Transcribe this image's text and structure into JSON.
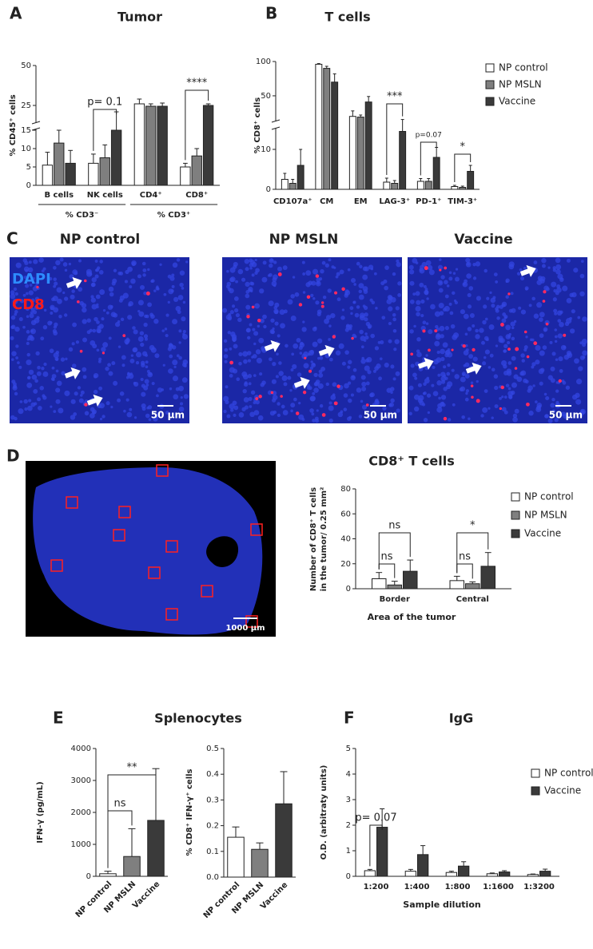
{
  "panel_labels": [
    "A",
    "B",
    "C",
    "D",
    "E",
    "F"
  ],
  "images": {
    "titles": [
      "NP control",
      "NP MSLN",
      "Vaccine"
    ],
    "channels": [
      "DAPI",
      "CD8"
    ],
    "scale_bars": [
      "50 µm",
      "50 µm",
      "50 µm"
    ],
    "overview_scale_bar": "1000 µm"
  },
  "chart_data": [
    {
      "type": "bar",
      "title": "Tumor",
      "y_label": "% CD45⁺ cells",
      "categories": [
        "B cells",
        "NK cells",
        "CD4⁺",
        "CD8⁺"
      ],
      "x_group_labels": [
        "% CD3⁻",
        "% CD3⁺"
      ],
      "series": [
        {
          "color": "#ffffff",
          "values": [
            5.5,
            6,
            26,
            5
          ],
          "errors": [
            3.5,
            2.5,
            3,
            1
          ]
        },
        {
          "color": "#7f7f7f",
          "values": [
            11.5,
            7.5,
            24.5,
            8
          ],
          "errors": [
            3.5,
            3.5,
            1.5,
            2
          ]
        },
        {
          "color": "#3a3a3a",
          "values": [
            6,
            15,
            24.5,
            25
          ],
          "errors": [
            3.5,
            6,
            2,
            1
          ]
        }
      ],
      "ylim": [
        0,
        50
      ],
      "yticks": [
        0,
        5,
        10,
        15,
        25,
        50
      ],
      "y_break": 15,
      "annotations": [
        "p= 0.1",
        "****"
      ]
    },
    {
      "type": "bar",
      "title": "T cells",
      "y_label": "% CD8⁺ cells",
      "categories": [
        "CD107a⁺",
        "CM",
        "EM",
        "LAG-3⁺",
        "PD-1⁺",
        "TIM-3⁺"
      ],
      "series": [
        {
          "name": "NP control",
          "color": "#ffffff",
          "values": [
            2.5,
            96,
            20,
            1.8,
            2,
            0.7
          ],
          "errors": [
            1.5,
            1,
            8,
            1,
            0.7,
            0.3
          ]
        },
        {
          "name": "NP MSLN",
          "color": "#7f7f7f",
          "values": [
            1.5,
            90,
            19,
            1.5,
            2,
            0.5
          ],
          "errors": [
            1,
            3,
            3,
            0.7,
            0.7,
            0.3
          ]
        },
        {
          "name": "Vaccine",
          "color": "#3a3a3a",
          "values": [
            6,
            70,
            41,
            14.5,
            8,
            4.5
          ],
          "errors": [
            4,
            12,
            8,
            1,
            2.5,
            1.5
          ]
        }
      ],
      "ylim": [
        0,
        100
      ],
      "yticks": [
        0,
        10,
        50,
        100
      ],
      "y_break": 15,
      "annotations": [
        "***",
        "p=0.07",
        "*"
      ]
    },
    {
      "type": "bar",
      "title": "CD8⁺ T cells",
      "y_label": [
        "Number of CD8⁺ T cells",
        "in the tumor/ 0.25 mm²"
      ],
      "x_label": "Area of the tumor",
      "categories": [
        "Border",
        "Central"
      ],
      "series": [
        {
          "name": "NP control",
          "color": "#ffffff",
          "values": [
            8,
            6.5
          ],
          "errors": [
            5,
            3.5
          ]
        },
        {
          "name": "NP MSLN",
          "color": "#7f7f7f",
          "values": [
            3,
            4
          ],
          "errors": [
            3,
            1.5
          ]
        },
        {
          "name": "Vaccine",
          "color": "#3a3a3a",
          "values": [
            14,
            18
          ],
          "errors": [
            9,
            11
          ]
        }
      ],
      "ylim": [
        0,
        80
      ],
      "yticks": [
        0,
        20,
        40,
        60,
        80
      ],
      "annotations": [
        "ns",
        "ns",
        "ns",
        "*"
      ]
    },
    {
      "type": "bar",
      "title": "Splenocytes",
      "y_label": "IFN-γ (pg/mL)",
      "categories": [
        "NP control",
        "NP MSLN",
        "Vaccine"
      ],
      "values": [
        80,
        620,
        1750
      ],
      "errors": [
        80,
        870,
        1620
      ],
      "colors": [
        "#ffffff",
        "#7f7f7f",
        "#3a3a3a"
      ],
      "ylim": [
        0,
        4000
      ],
      "yticks": [
        0,
        1000,
        2000,
        3000,
        4000
      ],
      "annotations": [
        "ns",
        "**"
      ]
    },
    {
      "type": "bar",
      "y_label": "% CD8⁺ IFN-γ⁺ cells",
      "categories": [
        "NP control",
        "NP MSLN",
        "Vaccine"
      ],
      "values": [
        0.155,
        0.108,
        0.285
      ],
      "errors": [
        0.04,
        0.025,
        0.125
      ],
      "colors": [
        "#ffffff",
        "#7f7f7f",
        "#3a3a3a"
      ],
      "ylim": [
        0,
        0.5
      ],
      "yticks": [
        {
          "value": 0,
          "label": "0.0"
        },
        0.1,
        0.2,
        0.3,
        0.4,
        0.5
      ]
    },
    {
      "type": "bar",
      "title": "IgG",
      "y_label": "O.D. (arbitraty units)",
      "x_label": "Sample dilution",
      "categories": [
        "1:200",
        "1:400",
        "1:800",
        "1:1600",
        "1:3200"
      ],
      "series": [
        {
          "name": "NP control",
          "color": "#ffffff",
          "values": [
            0.22,
            0.2,
            0.15,
            0.1,
            0.07
          ],
          "errors": [
            0.05,
            0.07,
            0.05,
            0.03,
            0.02
          ]
        },
        {
          "name": "Vaccine",
          "color": "#3a3a3a",
          "values": [
            1.92,
            0.85,
            0.4,
            0.17,
            0.2
          ],
          "errors": [
            0.72,
            0.35,
            0.17,
            0.05,
            0.08
          ]
        }
      ],
      "ylim": [
        0,
        5
      ],
      "yticks": [
        0,
        1,
        2,
        3,
        4,
        5
      ],
      "annotations": [
        "p= 0.07"
      ]
    }
  ]
}
